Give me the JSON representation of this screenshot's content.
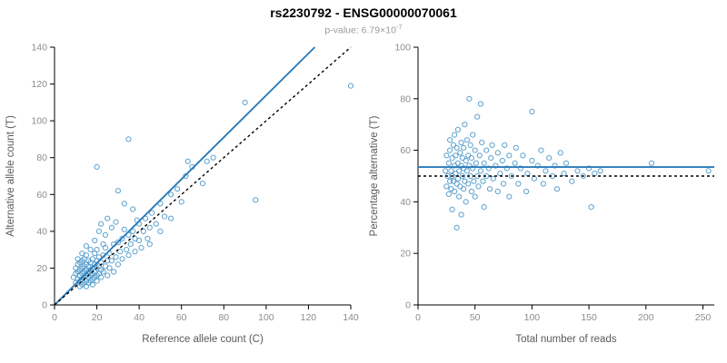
{
  "header": {
    "title": "rs2230792 - ENSG00000070061",
    "p_value_prefix": "p-value: 6.79×10",
    "p_value_exponent": "-7"
  },
  "chart_data": [
    {
      "type": "scatter",
      "name": "allele-counts-scatter",
      "xlabel": "Reference allele count (C)",
      "ylabel": "Alternative allele count (T)",
      "xlim": [
        0,
        140
      ],
      "ylim": [
        0,
        140
      ],
      "xticks": [
        0,
        20,
        40,
        60,
        80,
        100,
        120,
        140
      ],
      "yticks": [
        0,
        20,
        40,
        60,
        80,
        100,
        120,
        140
      ],
      "point_color": "#4292c6",
      "points": [
        [
          9,
          15
        ],
        [
          10,
          12
        ],
        [
          10,
          17
        ],
        [
          10,
          20
        ],
        [
          11,
          14
        ],
        [
          11,
          18
        ],
        [
          11,
          22
        ],
        [
          11,
          25
        ],
        [
          12,
          10
        ],
        [
          12,
          13
        ],
        [
          12,
          16
        ],
        [
          12,
          19
        ],
        [
          12,
          23
        ],
        [
          13,
          11
        ],
        [
          13,
          14
        ],
        [
          13,
          17
        ],
        [
          13,
          20
        ],
        [
          13,
          24
        ],
        [
          13,
          28
        ],
        [
          14,
          12
        ],
        [
          14,
          15
        ],
        [
          14,
          18
        ],
        [
          14,
          21
        ],
        [
          14,
          25
        ],
        [
          15,
          10
        ],
        [
          15,
          13
        ],
        [
          15,
          16
        ],
        [
          15,
          19
        ],
        [
          15,
          22
        ],
        [
          15,
          27
        ],
        [
          15,
          32
        ],
        [
          16,
          12
        ],
        [
          16,
          15
        ],
        [
          16,
          18
        ],
        [
          16,
          21
        ],
        [
          16,
          24
        ],
        [
          17,
          13
        ],
        [
          17,
          16
        ],
        [
          17,
          19
        ],
        [
          17,
          23
        ],
        [
          17,
          30
        ],
        [
          18,
          11
        ],
        [
          18,
          14
        ],
        [
          18,
          17
        ],
        [
          18,
          20
        ],
        [
          18,
          25
        ],
        [
          19,
          15
        ],
        [
          19,
          18
        ],
        [
          19,
          22
        ],
        [
          19,
          28
        ],
        [
          19,
          35
        ],
        [
          20,
          13
        ],
        [
          20,
          16
        ],
        [
          20,
          20
        ],
        [
          20,
          24
        ],
        [
          20,
          30
        ],
        [
          20,
          75
        ],
        [
          21,
          17
        ],
        [
          21,
          21
        ],
        [
          21,
          26
        ],
        [
          21,
          40
        ],
        [
          22,
          15
        ],
        [
          22,
          19
        ],
        [
          22,
          23
        ],
        [
          22,
          44
        ],
        [
          23,
          18
        ],
        [
          23,
          27
        ],
        [
          23,
          33
        ],
        [
          24,
          21
        ],
        [
          24,
          31
        ],
        [
          24,
          38
        ],
        [
          25,
          16
        ],
        [
          25,
          24
        ],
        [
          25,
          47
        ],
        [
          26,
          20
        ],
        [
          26,
          28
        ],
        [
          27,
          24
        ],
        [
          27,
          42
        ],
        [
          28,
          18
        ],
        [
          28,
          33
        ],
        [
          29,
          26
        ],
        [
          29,
          45
        ],
        [
          30,
          22
        ],
        [
          30,
          34
        ],
        [
          30,
          62
        ],
        [
          31,
          29
        ],
        [
          32,
          25
        ],
        [
          32,
          36
        ],
        [
          33,
          41
        ],
        [
          33,
          55
        ],
        [
          34,
          30
        ],
        [
          35,
          27
        ],
        [
          35,
          38
        ],
        [
          35,
          90
        ],
        [
          36,
          33
        ],
        [
          37,
          40
        ],
        [
          37,
          52
        ],
        [
          38,
          29
        ],
        [
          38,
          36
        ],
        [
          39,
          46
        ],
        [
          40,
          35
        ],
        [
          40,
          44
        ],
        [
          41,
          31
        ],
        [
          42,
          40
        ],
        [
          43,
          47
        ],
        [
          44,
          36
        ],
        [
          45,
          33
        ],
        [
          45,
          42
        ],
        [
          46,
          50
        ],
        [
          48,
          44
        ],
        [
          50,
          40
        ],
        [
          50,
          55
        ],
        [
          52,
          48
        ],
        [
          55,
          47
        ],
        [
          55,
          60
        ],
        [
          58,
          63
        ],
        [
          60,
          56
        ],
        [
          62,
          70
        ],
        [
          63,
          78
        ],
        [
          65,
          75
        ],
        [
          70,
          66
        ],
        [
          72,
          78
        ],
        [
          75,
          80
        ],
        [
          90,
          110
        ],
        [
          95,
          57
        ],
        [
          140,
          119
        ]
      ],
      "lines": [
        {
          "name": "regression-line",
          "style": "solid",
          "color": "#2b7bba",
          "x1": 0,
          "y1": 0,
          "x2": 123,
          "y2": 140
        },
        {
          "name": "identity-line",
          "style": "dashed",
          "color": "#000000",
          "x1": 0,
          "y1": 0,
          "x2": 140,
          "y2": 140
        }
      ]
    },
    {
      "type": "scatter",
      "name": "percentage-vs-reads-scatter",
      "xlabel": "Total number of reads",
      "ylabel": "Percentage alternative (T)",
      "xlim": [
        0,
        260
      ],
      "ylim": [
        0,
        100
      ],
      "xticks": [
        0,
        50,
        100,
        150,
        200,
        250
      ],
      "yticks": [
        0,
        20,
        40,
        60,
        80,
        100
      ],
      "point_color": "#4292c6",
      "points": [
        [
          24,
          52
        ],
        [
          25,
          46
        ],
        [
          25,
          58
        ],
        [
          26,
          50
        ],
        [
          27,
          55
        ],
        [
          27,
          43
        ],
        [
          28,
          48
        ],
        [
          28,
          60
        ],
        [
          28,
          64
        ],
        [
          29,
          52
        ],
        [
          29,
          45
        ],
        [
          30,
          57
        ],
        [
          30,
          50
        ],
        [
          30,
          37
        ],
        [
          31,
          62
        ],
        [
          31,
          48
        ],
        [
          32,
          54
        ],
        [
          32,
          44
        ],
        [
          32,
          66
        ],
        [
          33,
          51
        ],
        [
          33,
          58
        ],
        [
          34,
          47
        ],
        [
          34,
          61
        ],
        [
          34,
          30
        ],
        [
          35,
          55
        ],
        [
          35,
          49
        ],
        [
          35,
          68
        ],
        [
          36,
          52
        ],
        [
          36,
          42
        ],
        [
          37,
          59
        ],
        [
          37,
          46
        ],
        [
          38,
          54
        ],
        [
          38,
          63
        ],
        [
          38,
          35
        ],
        [
          39,
          50
        ],
        [
          39,
          57
        ],
        [
          40,
          45
        ],
        [
          40,
          61
        ],
        [
          40,
          53
        ],
        [
          41,
          48
        ],
        [
          41,
          70
        ],
        [
          42,
          56
        ],
        [
          42,
          40
        ],
        [
          43,
          52
        ],
        [
          43,
          64
        ],
        [
          44,
          47
        ],
        [
          44,
          58
        ],
        [
          45,
          54
        ],
        [
          45,
          80
        ],
        [
          46,
          50
        ],
        [
          46,
          62
        ],
        [
          47,
          44
        ],
        [
          47,
          57
        ],
        [
          48,
          53
        ],
        [
          48,
          66
        ],
        [
          49,
          48
        ],
        [
          50,
          60
        ],
        [
          50,
          42
        ],
        [
          51,
          55
        ],
        [
          52,
          50
        ],
        [
          52,
          73
        ],
        [
          53,
          46
        ],
        [
          54,
          58
        ],
        [
          55,
          52
        ],
        [
          55,
          78
        ],
        [
          56,
          63
        ],
        [
          57,
          48
        ],
        [
          58,
          55
        ],
        [
          58,
          38
        ],
        [
          60,
          60
        ],
        [
          60,
          50
        ],
        [
          62,
          53
        ],
        [
          63,
          45
        ],
        [
          64,
          57
        ],
        [
          65,
          62
        ],
        [
          66,
          49
        ],
        [
          68,
          54
        ],
        [
          70,
          59
        ],
        [
          70,
          44
        ],
        [
          72,
          51
        ],
        [
          74,
          56
        ],
        [
          75,
          47
        ],
        [
          76,
          62
        ],
        [
          78,
          53
        ],
        [
          80,
          58
        ],
        [
          80,
          42
        ],
        [
          82,
          50
        ],
        [
          85,
          55
        ],
        [
          86,
          61
        ],
        [
          88,
          47
        ],
        [
          90,
          53
        ],
        [
          92,
          58
        ],
        [
          95,
          44
        ],
        [
          96,
          51
        ],
        [
          100,
          75
        ],
        [
          100,
          56
        ],
        [
          102,
          49
        ],
        [
          105,
          54
        ],
        [
          108,
          60
        ],
        [
          110,
          47
        ],
        [
          112,
          52
        ],
        [
          115,
          57
        ],
        [
          118,
          50
        ],
        [
          120,
          54
        ],
        [
          122,
          45
        ],
        [
          125,
          59
        ],
        [
          128,
          51
        ],
        [
          130,
          55
        ],
        [
          135,
          48
        ],
        [
          140,
          52
        ],
        [
          145,
          50
        ],
        [
          150,
          53
        ],
        [
          152,
          38
        ],
        [
          155,
          51
        ],
        [
          160,
          52
        ],
        [
          205,
          55
        ],
        [
          255,
          52
        ]
      ],
      "lines": [
        {
          "name": "mean-percentage-line",
          "style": "solid",
          "color": "#2b7bba",
          "x1": 0,
          "y1": 53.5,
          "x2": 260,
          "y2": 53.5
        },
        {
          "name": "null-50-percent-line",
          "style": "dashed",
          "color": "#000000",
          "x1": 0,
          "y1": 50,
          "x2": 260,
          "y2": 50
        }
      ]
    }
  ]
}
